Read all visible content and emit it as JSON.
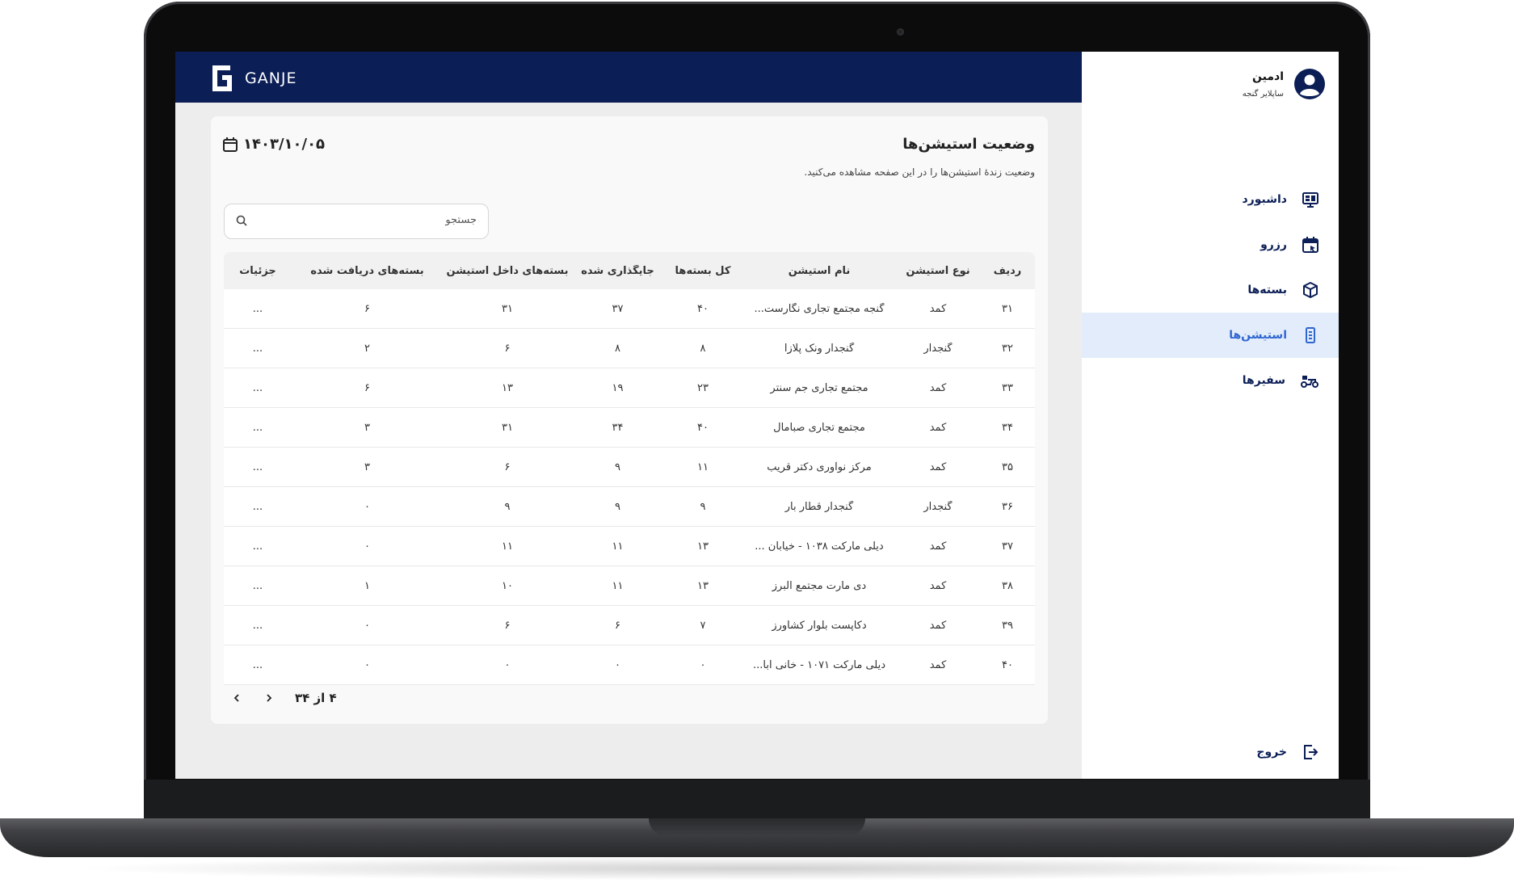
{
  "brand": {
    "name": "GANJE"
  },
  "profile": {
    "name": "ادمین",
    "role": "ساپلایر گنجه"
  },
  "nav": [
    {
      "label": "داشبورد",
      "icon": "dashboard-icon",
      "active": false
    },
    {
      "label": "رزرو",
      "icon": "calendar-icon",
      "active": false
    },
    {
      "label": "بسته‌ها",
      "icon": "package-icon",
      "active": false
    },
    {
      "label": "استیشن‌ها",
      "icon": "station-icon",
      "active": true
    },
    {
      "label": "سفیرها",
      "icon": "courier-icon",
      "active": false
    }
  ],
  "logout": {
    "label": "خروج"
  },
  "page": {
    "title": "وضعیت استیشن‌ها",
    "subtitle": "وضعیت زندهٔ استیشن‌ها را در این صفحه مشاهده می‌کنید.",
    "date": "۱۴۰۳/۱۰/۰۵"
  },
  "search": {
    "placeholder": "جستجو"
  },
  "table": {
    "columns": [
      "ردیف",
      "نوع استیشن",
      "نام استیشن",
      "کل بسته‌ها",
      "جایگذاری شده",
      "بسته‌های داخل استیشن",
      "بسته‌های دریافت شده",
      "جزئیات"
    ],
    "rows": [
      [
        "۳۱",
        "کمد",
        "گنجه مجتمع تجاری نگارست...",
        "۴۰",
        "۳۷",
        "۳۱",
        "۶",
        "..."
      ],
      [
        "۳۲",
        "گنجدار",
        "گنجدار ونک پلازا",
        "۸",
        "۸",
        "۶",
        "۲",
        "..."
      ],
      [
        "۳۳",
        "کمد",
        "مجتمع تجاری جم سنتر",
        "۲۳",
        "۱۹",
        "۱۳",
        "۶",
        "..."
      ],
      [
        "۳۴",
        "کمد",
        "مجتمع تجاری صبامال",
        "۴۰",
        "۳۴",
        "۳۱",
        "۳",
        "..."
      ],
      [
        "۳۵",
        "کمد",
        "مرکز نوآوری دکتر قریب",
        "۱۱",
        "۹",
        "۶",
        "۳",
        "..."
      ],
      [
        "۳۶",
        "گنجدار",
        "گنجدار قطار بار",
        "۹",
        "۹",
        "۹",
        "۰",
        "..."
      ],
      [
        "۳۷",
        "کمد",
        "دیلی مارکت ۱۰۳۸ - خیابان ...",
        "۱۳",
        "۱۱",
        "۱۱",
        "۰",
        "..."
      ],
      [
        "۳۸",
        "کمد",
        "دی مارت مجتمع البرز",
        "۱۳",
        "۱۱",
        "۱۰",
        "۱",
        "..."
      ],
      [
        "۳۹",
        "کمد",
        "دکاپست بلوار کشاورز",
        "۷",
        "۶",
        "۶",
        "۰",
        "..."
      ],
      [
        "۴۰",
        "کمد",
        "دیلی مارکت ۱۰۷۱ - خانی آبا...",
        "۰",
        "۰",
        "۰",
        "۰",
        "..."
      ]
    ]
  },
  "pagination": {
    "text": "۴ از ۳۴"
  },
  "colors": {
    "navy": "#0b1e56",
    "active_bg": "#e2ecfb",
    "active_text": "#2f66d0"
  }
}
